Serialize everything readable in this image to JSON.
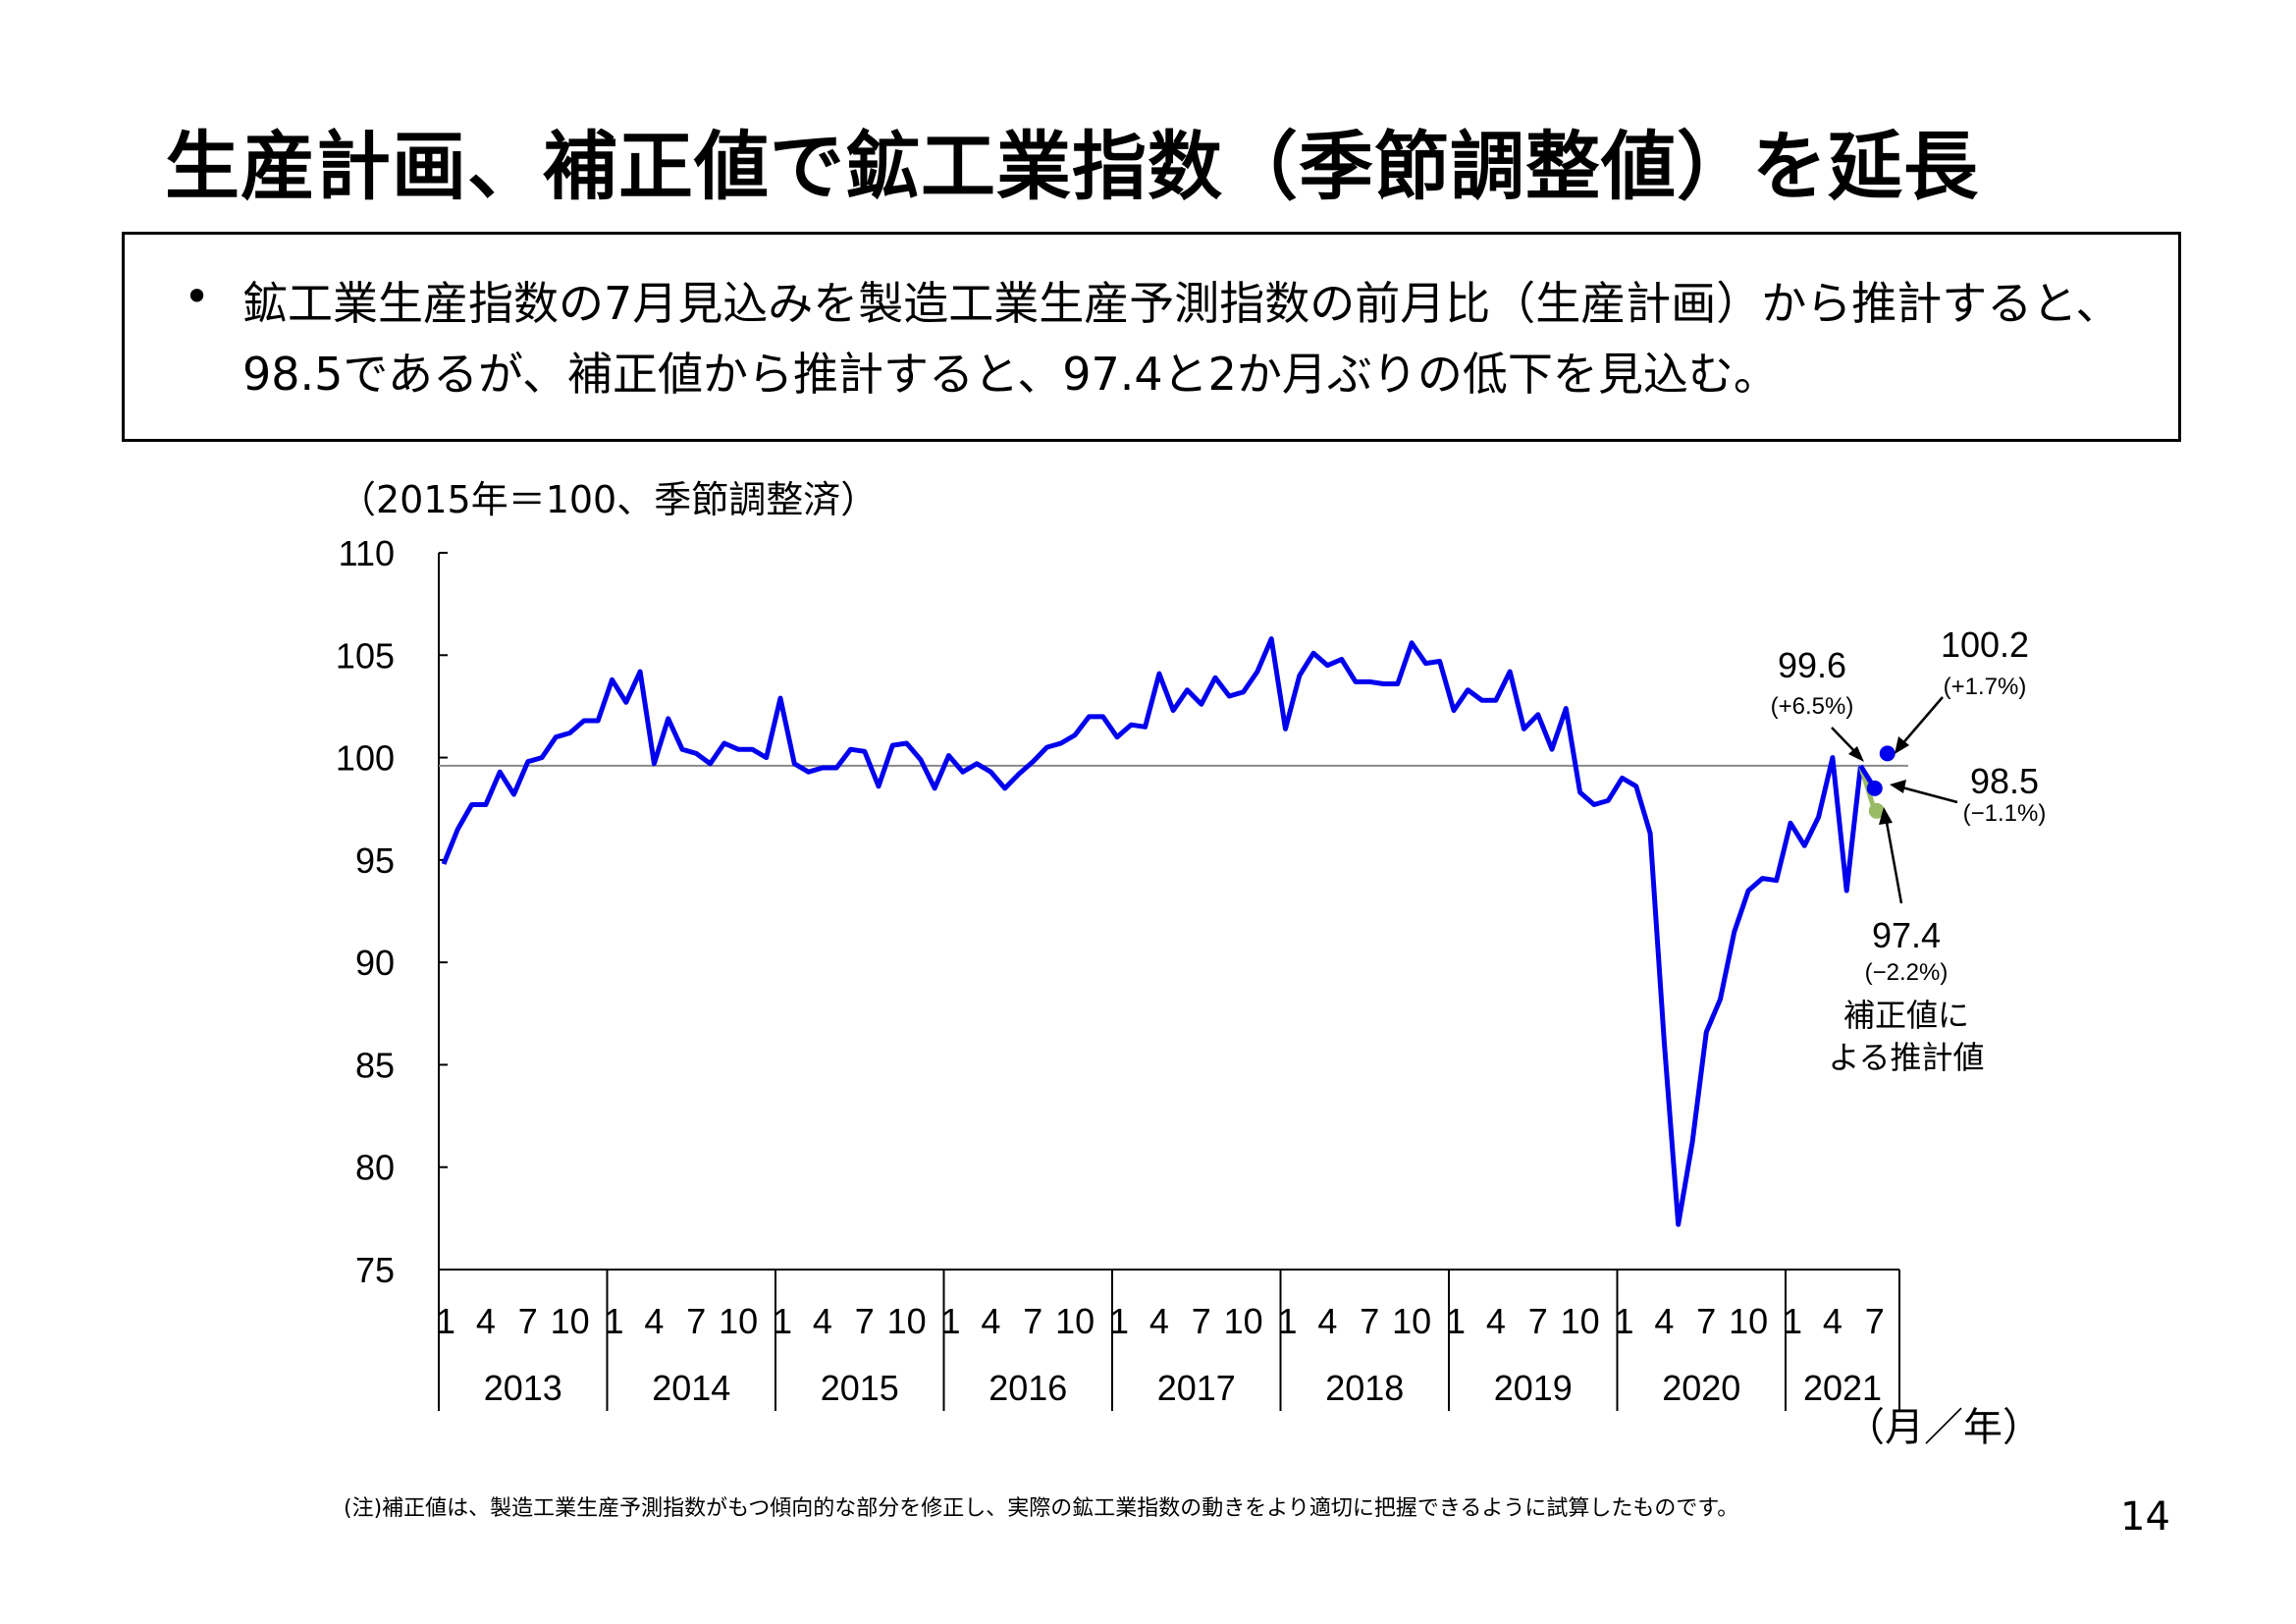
{
  "title": "生産計画、補正値で鉱工業指数（季節調整値）を延長",
  "summary": {
    "bullet": "•",
    "text": "鉱工業生産指数の7月見込みを製造工業生産予測指数の前月比（生産計画）から推計すると、98.5であるが、補正値から推計すると、97.4と2か月ぶりの低下を見込む。"
  },
  "chart_data": {
    "type": "line",
    "unit_label": "（2015年＝100、季節調整済）",
    "ylim": [
      75,
      110
    ],
    "yticks": [
      "75",
      "80",
      "85",
      "90",
      "95",
      "100",
      "105",
      "110"
    ],
    "reference_line": 99.6,
    "month_ticks": [
      "1",
      "4",
      "7",
      "10"
    ],
    "last_year_month_ticks": [
      "1",
      "4",
      "7"
    ],
    "years": [
      "2013",
      "2014",
      "2015",
      "2016",
      "2017",
      "2018",
      "2019",
      "2020",
      "2021"
    ],
    "x_axis_unit": "（月／年）",
    "start": "2013-01",
    "series": [
      {
        "name": "鉱工業生産指数",
        "color": "#0000ee",
        "values": [
          94.8,
          96.5,
          97.7,
          97.7,
          99.3,
          98.2,
          99.8,
          100.0,
          101.0,
          101.2,
          101.8,
          101.8,
          103.8,
          102.7,
          104.2,
          99.7,
          101.9,
          100.4,
          100.2,
          99.7,
          100.7,
          100.4,
          100.4,
          100.0,
          102.9,
          99.7,
          99.3,
          99.5,
          99.5,
          100.4,
          100.3,
          98.6,
          100.6,
          100.7,
          99.9,
          98.5,
          100.1,
          99.3,
          99.7,
          99.3,
          98.5,
          99.2,
          99.8,
          100.5,
          100.7,
          101.1,
          102.0,
          102.0,
          101.0,
          101.6,
          101.5,
          104.1,
          102.3,
          103.3,
          102.6,
          103.9,
          103.0,
          103.2,
          104.2,
          105.8,
          101.4,
          104.0,
          105.1,
          104.5,
          104.8,
          103.7,
          103.7,
          103.6,
          103.6,
          105.6,
          104.6,
          104.7,
          102.3,
          103.3,
          102.8,
          102.8,
          104.2,
          101.4,
          102.1,
          100.4,
          102.4,
          98.3,
          97.7,
          97.9,
          99.0,
          98.6,
          96.3,
          86.1,
          77.2,
          81.2,
          86.6,
          88.2,
          91.5,
          93.5,
          94.1,
          94.0,
          96.8,
          95.7,
          97.1,
          100.0,
          93.5,
          99.6
        ]
      }
    ],
    "projections": [
      {
        "name": "生産計画による推計",
        "value": 98.5,
        "color": "#0000ee"
      },
      {
        "name": "補正値による推計",
        "value": 97.4,
        "color": "#99bb66"
      }
    ],
    "extra_points": [
      {
        "name": "plan-point-100-2",
        "value": 100.2,
        "color": "#0000ee"
      }
    ],
    "annotations": [
      {
        "value": "99.6",
        "change": "(+6.5%)"
      },
      {
        "value": "100.2",
        "change": "(+1.7%)"
      },
      {
        "value": "98.5",
        "change": "(−1.1%)"
      },
      {
        "value": "97.4",
        "change": "(−2.2%)",
        "note1": "補正値に",
        "note2": "よる推計値"
      }
    ]
  },
  "footnote": "(注)補正値は、製造工業生産予測指数がもつ傾向的な部分を修正し、実際の鉱工業指数の動きをより適切に把握できるように試算したものです。",
  "page_number": "14"
}
